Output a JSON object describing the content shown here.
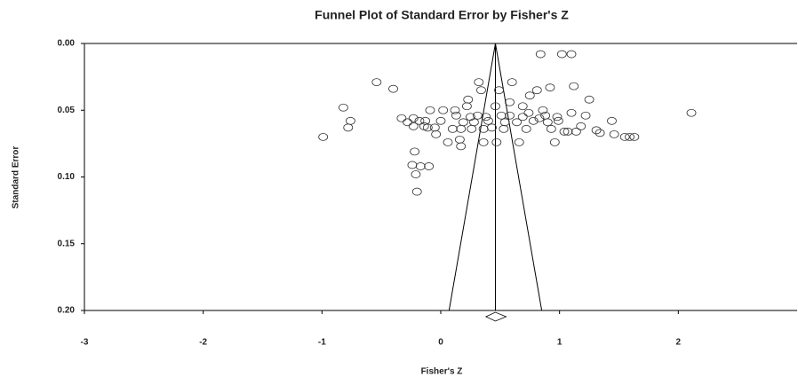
{
  "chart_data": {
    "type": "funnel",
    "title": "Funnel Plot of Standard Error by Fisher's Z",
    "x_label": "Fisher's Z",
    "y_label": "Standard Error",
    "xlim": [
      -3,
      3
    ],
    "xticks": [
      -3,
      -2,
      -1,
      0,
      1,
      2
    ],
    "ylim": [
      0,
      0.2
    ],
    "yticks": [
      {
        "value": 0,
        "label": "0.00"
      },
      {
        "value": 0.05,
        "label": "0.05"
      },
      {
        "value": 0.1,
        "label": "0.10"
      },
      {
        "value": 0.15,
        "label": "0.15"
      },
      {
        "value": 0.2,
        "label": "0.20"
      }
    ],
    "y_inverted": true,
    "color": "#333333",
    "x": [
      -0.99,
      -0.82,
      -0.78,
      -0.76,
      -0.54,
      -0.4,
      -0.24,
      -0.22,
      -0.21,
      -0.2,
      -0.17,
      -0.1,
      -0.33,
      -0.28,
      -0.23,
      -0.23,
      -0.18,
      -0.13,
      -0.11,
      -0.09,
      -0.14,
      -0.05,
      -0.04,
      0.06,
      0.1,
      0.12,
      0.13,
      0.16,
      0.17,
      0.19,
      0.22,
      0.23,
      0.25,
      0.26,
      0.28,
      0.31,
      0.32,
      0.34,
      0.36,
      0.38,
      0.4,
      0.43,
      0.46,
      0.49,
      0.51,
      0.53,
      0.54,
      0.58,
      0.6,
      0.64,
      0.66,
      0.69,
      0.72,
      0.74,
      0.75,
      0.78,
      0.81,
      0.84,
      0.86,
      0.88,
      0.9,
      0.92,
      0.93,
      0.96,
      0.98,
      0.99,
      1.02,
      1.04,
      1.07,
      1.1,
      1.1,
      1.12,
      1.18,
      1.25,
      1.31,
      1.34,
      1.44,
      1.46,
      1.55,
      1.59,
      1.63,
      2.11,
      0.0,
      0.02,
      0.58,
      0.69,
      0.83,
      1.14,
      1.22,
      0.47,
      0.36,
      0.17
    ],
    "values": [
      0.07,
      0.048,
      0.063,
      0.058,
      0.029,
      0.034,
      0.091,
      0.081,
      0.098,
      0.111,
      0.092,
      0.092,
      0.056,
      0.059,
      0.056,
      0.062,
      0.058,
      0.058,
      0.063,
      0.05,
      0.062,
      0.063,
      0.068,
      0.074,
      0.064,
      0.05,
      0.054,
      0.072,
      0.064,
      0.059,
      0.047,
      0.042,
      0.055,
      0.064,
      0.059,
      0.054,
      0.029,
      0.035,
      0.064,
      0.055,
      0.058,
      0.063,
      0.047,
      0.035,
      0.054,
      0.064,
      0.059,
      0.054,
      0.029,
      0.059,
      0.074,
      0.055,
      0.064,
      0.052,
      0.039,
      0.058,
      0.035,
      0.008,
      0.05,
      0.054,
      0.059,
      0.033,
      0.064,
      0.074,
      0.055,
      0.058,
      0.008,
      0.066,
      0.066,
      0.008,
      0.052,
      0.032,
      0.062,
      0.042,
      0.065,
      0.067,
      0.058,
      0.068,
      0.07,
      0.07,
      0.07,
      0.052,
      0.058,
      0.05,
      0.044,
      0.047,
      0.056,
      0.066,
      0.054,
      0.074,
      0.074,
      0.077
    ],
    "funnel": {
      "x": [
        0.07,
        0.46,
        0.85
      ],
      "y": [
        0.2,
        0,
        0.2
      ]
    },
    "mean_line": {
      "x": [
        0.46,
        0.46
      ],
      "y": [
        0,
        0.2
      ]
    },
    "summary": {
      "value": 0.46,
      "lower": 0.38,
      "upper": 0.55
    }
  }
}
